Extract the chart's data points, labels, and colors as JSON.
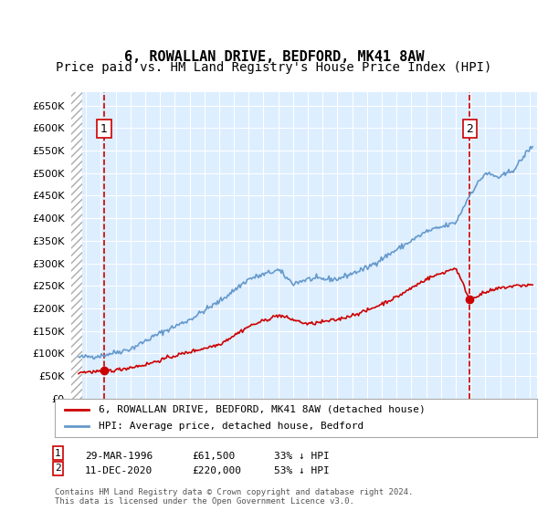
{
  "title": "6, ROWALLAN DRIVE, BEDFORD, MK41 8AW",
  "subtitle": "Price paid vs. HM Land Registry's House Price Index (HPI)",
  "legend_line1": "6, ROWALLAN DRIVE, BEDFORD, MK41 8AW (detached house)",
  "legend_line2": "HPI: Average price, detached house, Bedford",
  "annotation1": {
    "label": "1",
    "date": "29-MAR-1996",
    "price": "£61,500",
    "pct": "33% ↓ HPI",
    "x_year": 1996.23
  },
  "annotation2": {
    "label": "2",
    "date": "11-DEC-2020",
    "price": "£220,000",
    "pct": "53% ↓ HPI",
    "x_year": 2020.95
  },
  "footer": "Contains HM Land Registry data © Crown copyright and database right 2024.\nThis data is licensed under the Open Government Licence v3.0.",
  "ylim": [
    0,
    680000
  ],
  "xlim_start": 1994.0,
  "xlim_end": 2025.5,
  "red_color": "#cc0000",
  "blue_color": "#6699cc",
  "background_color": "#ddeeff",
  "hatch_color": "#cccccc",
  "grid_color": "#ffffff",
  "title_fontsize": 11,
  "subtitle_fontsize": 10
}
